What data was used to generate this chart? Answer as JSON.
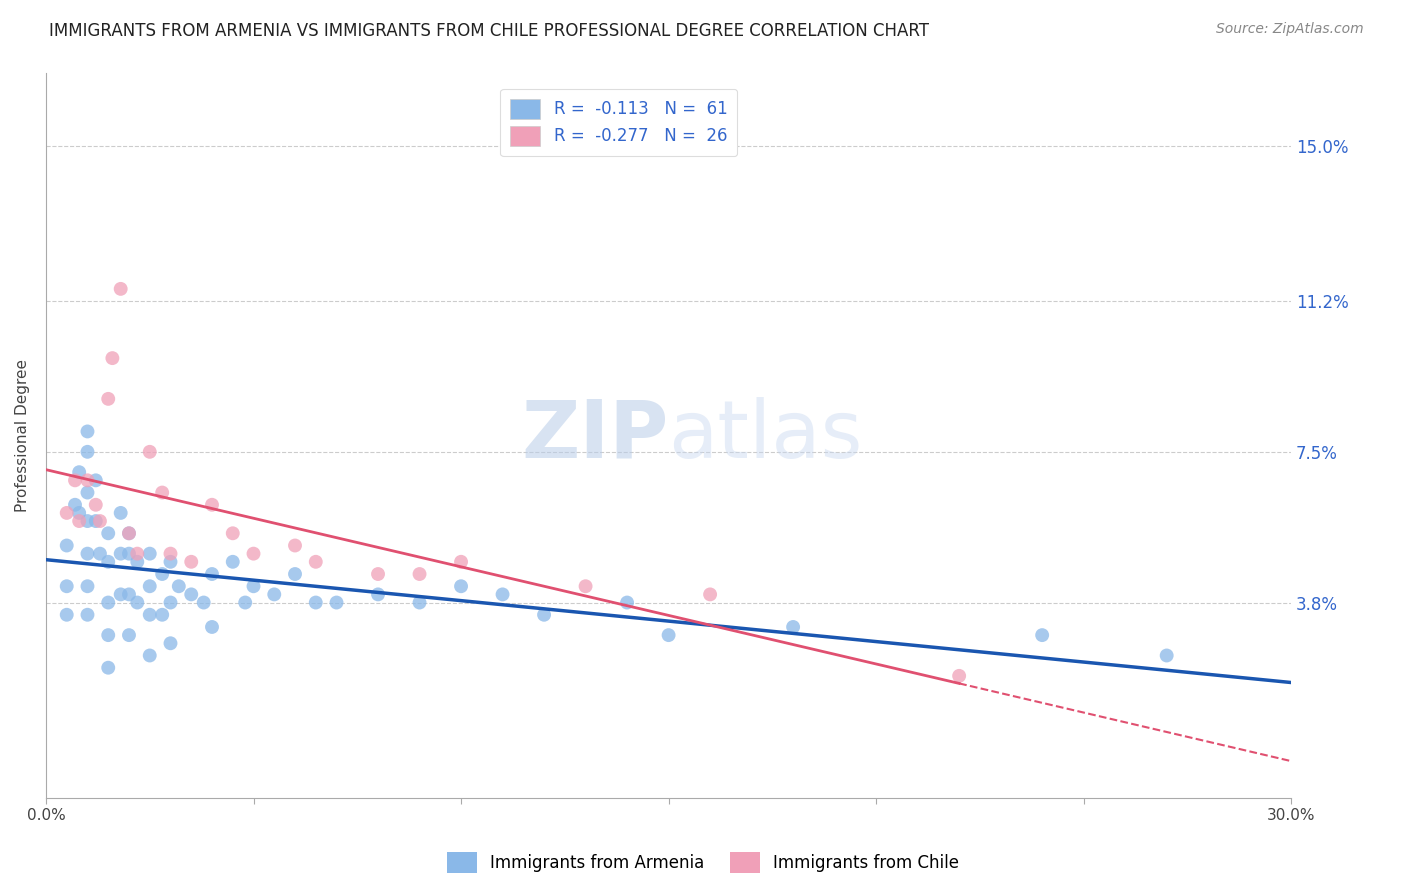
{
  "title": "IMMIGRANTS FROM ARMENIA VS IMMIGRANTS FROM CHILE PROFESSIONAL DEGREE CORRELATION CHART",
  "source": "Source: ZipAtlas.com",
  "ylabel": "Professional Degree",
  "ytick_labels": [
    "3.8%",
    "7.5%",
    "11.2%",
    "15.0%"
  ],
  "ytick_values": [
    0.038,
    0.075,
    0.112,
    0.15
  ],
  "xlim": [
    0.0,
    0.3
  ],
  "ylim": [
    -0.01,
    0.168
  ],
  "legend_line1": "R =  -0.113   N =  61",
  "legend_line2": "R =  -0.277   N =  26",
  "color_armenia": "#8ab8e8",
  "color_chile": "#f0a0b8",
  "color_line_armenia": "#1a56b0",
  "color_line_chile": "#e05070",
  "watermark_zip": "ZIP",
  "watermark_atlas": "atlas",
  "armenia_x": [
    0.005,
    0.005,
    0.005,
    0.007,
    0.008,
    0.008,
    0.01,
    0.01,
    0.01,
    0.01,
    0.01,
    0.01,
    0.01,
    0.012,
    0.012,
    0.013,
    0.015,
    0.015,
    0.015,
    0.015,
    0.015,
    0.018,
    0.018,
    0.018,
    0.02,
    0.02,
    0.02,
    0.02,
    0.022,
    0.022,
    0.025,
    0.025,
    0.025,
    0.025,
    0.028,
    0.028,
    0.03,
    0.03,
    0.03,
    0.032,
    0.035,
    0.038,
    0.04,
    0.04,
    0.045,
    0.048,
    0.05,
    0.055,
    0.06,
    0.065,
    0.07,
    0.08,
    0.09,
    0.1,
    0.11,
    0.12,
    0.14,
    0.15,
    0.18,
    0.24,
    0.27
  ],
  "armenia_y": [
    0.052,
    0.042,
    0.035,
    0.062,
    0.07,
    0.06,
    0.08,
    0.075,
    0.065,
    0.058,
    0.05,
    0.042,
    0.035,
    0.068,
    0.058,
    0.05,
    0.055,
    0.048,
    0.038,
    0.03,
    0.022,
    0.06,
    0.05,
    0.04,
    0.055,
    0.05,
    0.04,
    0.03,
    0.048,
    0.038,
    0.05,
    0.042,
    0.035,
    0.025,
    0.045,
    0.035,
    0.048,
    0.038,
    0.028,
    0.042,
    0.04,
    0.038,
    0.045,
    0.032,
    0.048,
    0.038,
    0.042,
    0.04,
    0.045,
    0.038,
    0.038,
    0.04,
    0.038,
    0.042,
    0.04,
    0.035,
    0.038,
    0.03,
    0.032,
    0.03,
    0.025
  ],
  "chile_x": [
    0.005,
    0.007,
    0.008,
    0.01,
    0.012,
    0.013,
    0.015,
    0.016,
    0.018,
    0.02,
    0.022,
    0.025,
    0.028,
    0.03,
    0.035,
    0.04,
    0.045,
    0.05,
    0.06,
    0.065,
    0.08,
    0.09,
    0.1,
    0.13,
    0.16,
    0.22
  ],
  "chile_y": [
    0.06,
    0.068,
    0.058,
    0.068,
    0.062,
    0.058,
    0.088,
    0.098,
    0.115,
    0.055,
    0.05,
    0.075,
    0.065,
    0.05,
    0.048,
    0.062,
    0.055,
    0.05,
    0.052,
    0.048,
    0.045,
    0.045,
    0.048,
    0.042,
    0.04,
    0.02
  ]
}
